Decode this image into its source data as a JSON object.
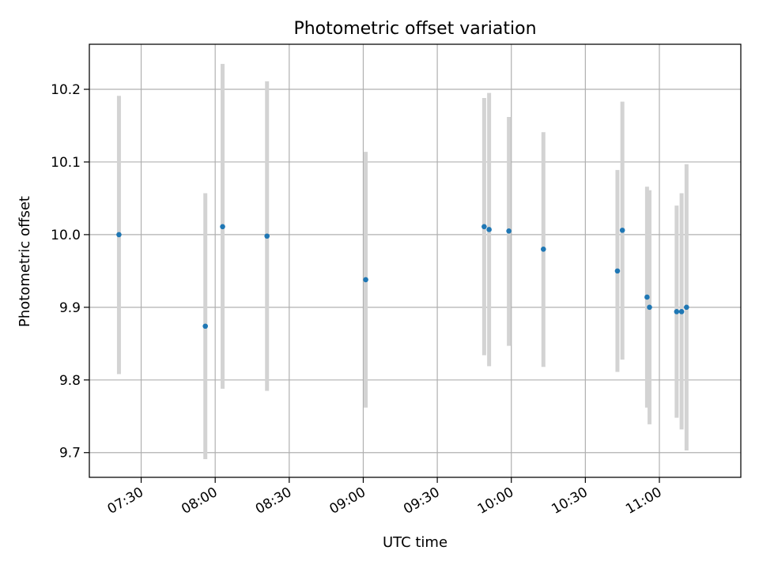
{
  "chart_data": {
    "type": "scatter",
    "title": "Photometric offset variation",
    "xlabel": "UTC time",
    "ylabel": "Photometric offset",
    "x_is_time": true,
    "xlim": [
      "07:09",
      "11:33"
    ],
    "ylim": [
      9.666,
      10.262
    ],
    "x_ticks": [
      "07:30",
      "08:00",
      "08:30",
      "09:00",
      "09:30",
      "10:00",
      "10:30",
      "11:00"
    ],
    "y_ticks": [
      9.7,
      9.8,
      9.9,
      10.0,
      10.1,
      10.2
    ],
    "y_tick_labels": [
      "9.7",
      "9.8",
      "9.9",
      "10.0",
      "10.1",
      "10.2"
    ],
    "grid": true,
    "colors": {
      "point": "#1f77b4",
      "errorbar": "#d3d3d3",
      "grid": "#b0b0b0"
    },
    "series": [
      {
        "points": [
          {
            "x": "07:21",
            "y": 10.0,
            "ylow": 9.808,
            "yhigh": 10.191
          },
          {
            "x": "07:56",
            "y": 9.874,
            "ylow": 9.691,
            "yhigh": 10.057
          },
          {
            "x": "08:03",
            "y": 10.011,
            "ylow": 9.788,
            "yhigh": 10.235
          },
          {
            "x": "08:21",
            "y": 9.998,
            "ylow": 9.785,
            "yhigh": 10.211
          },
          {
            "x": "09:01",
            "y": 9.938,
            "ylow": 9.762,
            "yhigh": 10.114
          },
          {
            "x": "09:49",
            "y": 10.011,
            "ylow": 9.834,
            "yhigh": 10.188
          },
          {
            "x": "09:51",
            "y": 10.007,
            "ylow": 9.819,
            "yhigh": 10.195
          },
          {
            "x": "09:59",
            "y": 10.005,
            "ylow": 9.847,
            "yhigh": 10.162
          },
          {
            "x": "10:13",
            "y": 9.98,
            "ylow": 9.818,
            "yhigh": 10.141
          },
          {
            "x": "10:43",
            "y": 9.95,
            "ylow": 9.811,
            "yhigh": 10.089
          },
          {
            "x": "10:45",
            "y": 10.006,
            "ylow": 9.828,
            "yhigh": 10.183
          },
          {
            "x": "10:55",
            "y": 9.914,
            "ylow": 9.762,
            "yhigh": 10.066
          },
          {
            "x": "10:56",
            "y": 9.9,
            "ylow": 9.739,
            "yhigh": 10.061
          },
          {
            "x": "11:07",
            "y": 9.894,
            "ylow": 9.748,
            "yhigh": 10.04
          },
          {
            "x": "11:09",
            "y": 9.894,
            "ylow": 9.732,
            "yhigh": 10.057
          },
          {
            "x": "11:11",
            "y": 9.9,
            "ylow": 9.703,
            "yhigh": 10.097
          }
        ]
      }
    ]
  }
}
